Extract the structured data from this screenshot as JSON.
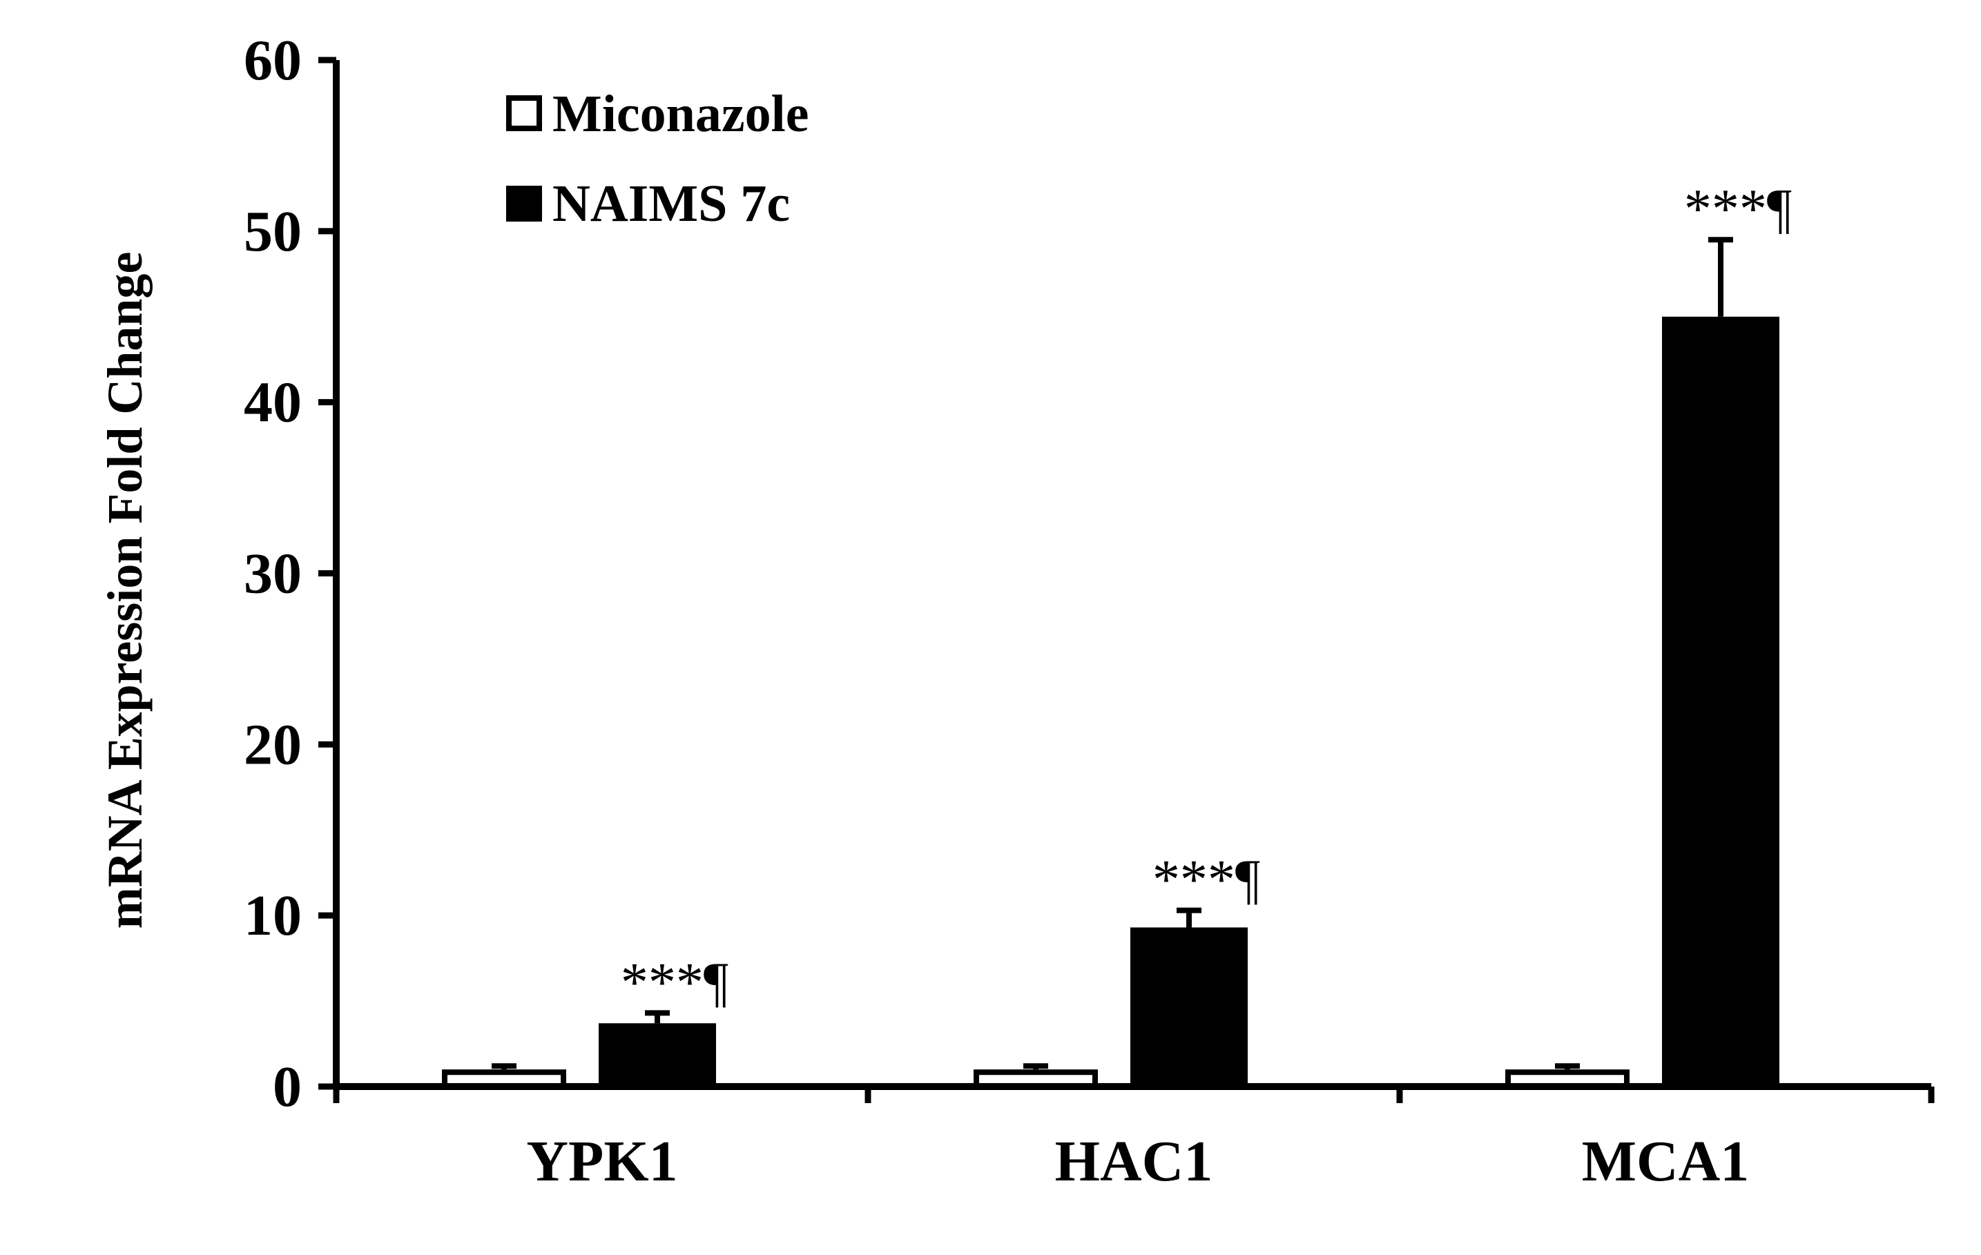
{
  "chart_data": {
    "type": "bar",
    "categories": [
      "YPK1",
      "HAC1",
      "MCA1"
    ],
    "series": [
      {
        "name": "Miconazole",
        "values": [
          1,
          1,
          1
        ],
        "errors": [
          0.2,
          0.2,
          0.2
        ],
        "fill": "#ffffff",
        "stroke": "#000000"
      },
      {
        "name": "NAIMS 7c",
        "values": [
          3.7,
          9.3,
          45
        ],
        "errors": [
          0.6,
          1.0,
          4.5
        ],
        "fill": "#000000",
        "stroke": "#000000"
      }
    ],
    "annotations": [
      "***¶",
      "***¶",
      "***¶"
    ],
    "ylabel": "mRNA Expression Fold Change",
    "xlabel": "",
    "ylim": [
      0,
      60
    ],
    "yticks": [
      0,
      10,
      20,
      30,
      40,
      50,
      60
    ],
    "grid": false,
    "legend_position": "top-left"
  }
}
